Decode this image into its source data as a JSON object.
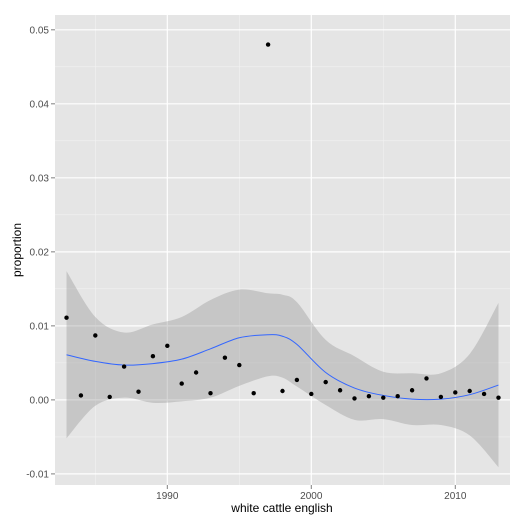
{
  "chart_data": {
    "type": "scatter",
    "title": "",
    "xlabel": "white cattle english",
    "ylabel": "proportion",
    "xlim": [
      1982.2,
      2013.8
    ],
    "ylim": [
      -0.0115,
      0.052
    ],
    "x_ticks": [
      1990,
      2000,
      2010
    ],
    "x_tick_labels": [
      "1990",
      "2000",
      "2010"
    ],
    "y_ticks": [
      -0.01,
      0.0,
      0.01,
      0.02,
      0.03,
      0.04,
      0.05
    ],
    "y_tick_labels": [
      "-0.01",
      "0.00",
      "0.01",
      "0.02",
      "0.03",
      "0.04",
      "0.05"
    ],
    "grid": true,
    "series": [
      {
        "type": "points",
        "color": "#000000",
        "x": [
          1983,
          1984,
          1985,
          1986,
          1987,
          1988,
          1989,
          1990,
          1991,
          1992,
          1993,
          1994,
          1995,
          1996,
          1997,
          1998,
          1999,
          2000,
          2001,
          2002,
          2003,
          2004,
          2005,
          2006,
          2007,
          2008,
          2009,
          2010,
          2011,
          2012,
          2013
        ],
        "y": [
          0.0111,
          0.0006,
          0.0087,
          0.0004,
          0.0045,
          0.0011,
          0.0059,
          0.0073,
          0.0022,
          0.0037,
          0.0009,
          0.0057,
          0.0047,
          0.0009,
          0.048,
          0.0012,
          0.0027,
          0.0008,
          0.0024,
          0.0013,
          0.0002,
          0.0005,
          0.0003,
          0.0005,
          0.0013,
          0.0029,
          0.0004,
          0.001,
          0.0012,
          0.0008,
          0.0003
        ]
      },
      {
        "type": "smooth",
        "color": "#3366ff",
        "band_color": "#999999",
        "x": [
          1983,
          1985,
          1987,
          1989,
          1991,
          1993,
          1995,
          1997,
          1998,
          1999,
          2001,
          2003,
          2005,
          2007,
          2009,
          2011,
          2013
        ],
        "y": [
          0.0061,
          0.0052,
          0.0047,
          0.0049,
          0.0055,
          0.0069,
          0.0084,
          0.0088,
          0.0086,
          0.0075,
          0.0037,
          0.0016,
          0.0006,
          0.0001,
          0.0001,
          0.0007,
          0.002
        ],
        "upper": [
          0.0174,
          0.0112,
          0.0091,
          0.0102,
          0.0112,
          0.0135,
          0.0149,
          0.0144,
          0.0142,
          0.0132,
          0.0081,
          0.0059,
          0.0038,
          0.0036,
          0.0036,
          0.0062,
          0.0131
        ],
        "lower": [
          -0.0052,
          -0.0008,
          0.0003,
          -0.0004,
          -0.0002,
          0.0003,
          0.0019,
          0.0032,
          0.003,
          0.0018,
          -0.0007,
          -0.0027,
          -0.0026,
          -0.0034,
          -0.0034,
          -0.0048,
          -0.0091
        ]
      }
    ]
  }
}
